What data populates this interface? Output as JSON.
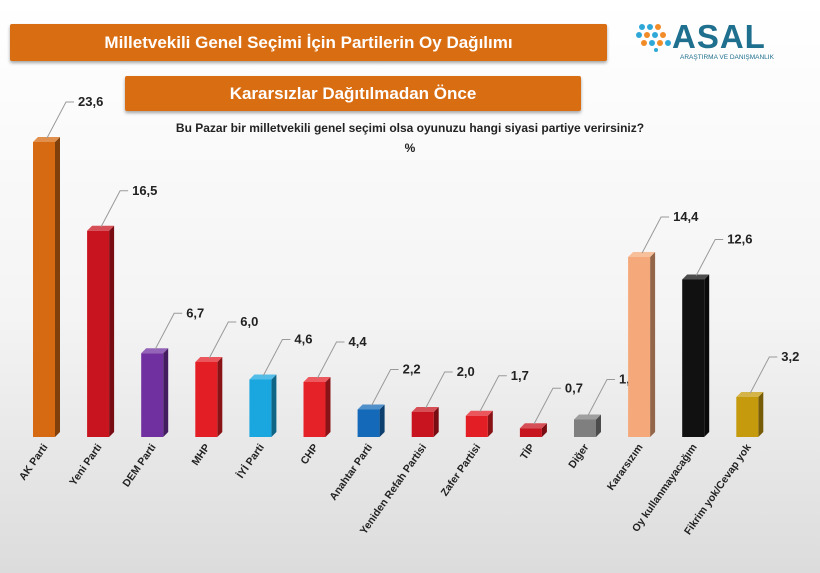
{
  "header": {
    "title": "Milletvekili Genel Seçimi İçin Partilerin Oy Dağılımı",
    "subtitle": "Kararsızlar Dağıtılmadan Önce",
    "question": "Bu Pazar bir milletvekili genel seçimi olsa oyunuzu hangi siyasi partiye verirsiniz?",
    "unit": "%"
  },
  "logo": {
    "name": "ASAL",
    "tagline": "ARAŞTIRMA VE DANIŞMANLIK",
    "colors": [
      "#2fa8d8",
      "#f28c28",
      "#1f6f8f"
    ]
  },
  "chart_data": {
    "type": "bar",
    "categories": [
      "AK Parti",
      "Yeni Parti",
      "DEM Parti",
      "MHP",
      "İYİ Parti",
      "CHP",
      "Anahtar Parti",
      "Yeniden Refah Partisi",
      "Zafer Partisi",
      "TİP",
      "Diğer",
      "Kararsızım",
      "Oy kullanmayacağım",
      "Fikrim yok/Cevap yok"
    ],
    "values": [
      23.6,
      16.5,
      6.7,
      6.0,
      4.6,
      4.4,
      2.2,
      2.0,
      1.7,
      0.7,
      1.4,
      14.4,
      12.6,
      3.2
    ],
    "labels": [
      "23,6",
      "16,5",
      "6,7",
      "6,0",
      "4,6",
      "4,4",
      "2,2",
      "2,0",
      "1,7",
      "0,7",
      "1,4",
      "14,4",
      "12,6",
      "3,2"
    ],
    "colors": [
      "#d66a12",
      "#c8141e",
      "#7030a0",
      "#e31e24",
      "#1aa7e0",
      "#e52228",
      "#1469b8",
      "#c8141e",
      "#e31e24",
      "#c8141e",
      "#7f7f7f",
      "#f5a97a",
      "#111111",
      "#c59a0c"
    ],
    "ylim": [
      0,
      25
    ],
    "grid": false,
    "legend": "none"
  }
}
